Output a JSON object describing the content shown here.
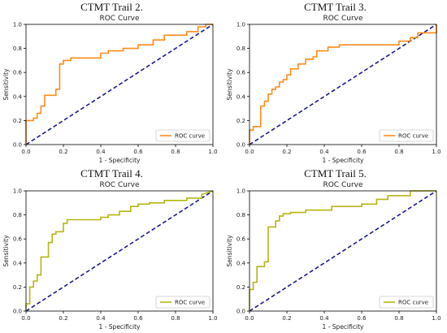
{
  "chart_data": [
    {
      "type": "line",
      "panel_title": "CTMT Trail 2.",
      "title": "ROC Curve",
      "xlabel": "1 - Specificity",
      "ylabel": "Sensitivity",
      "xlim": [
        0,
        1
      ],
      "ylim": [
        0,
        1
      ],
      "xticks": [
        "0.0",
        "0.2",
        "0.4",
        "0.6",
        "0.8",
        "1.0"
      ],
      "yticks": [
        "0.0",
        "0.2",
        "0.4",
        "0.6",
        "0.8",
        "1.0"
      ],
      "legend": "lower right",
      "diagonal_color": "#1a1a8c",
      "series": [
        {
          "name": "ROC curve",
          "color": "#ff8c1a",
          "x": [
            0,
            0,
            0.04,
            0.04,
            0.06,
            0.06,
            0.08,
            0.08,
            0.1,
            0.1,
            0.16,
            0.16,
            0.18,
            0.18,
            0.2,
            0.2,
            0.24,
            0.24,
            0.4,
            0.4,
            0.44,
            0.44,
            0.52,
            0.52,
            0.6,
            0.6,
            0.68,
            0.68,
            0.74,
            0.74,
            0.86,
            0.86,
            0.92,
            0.92,
            0.96,
            0.96,
            1.0
          ],
          "y": [
            0,
            0.2,
            0.2,
            0.22,
            0.22,
            0.26,
            0.26,
            0.32,
            0.32,
            0.41,
            0.41,
            0.46,
            0.46,
            0.67,
            0.67,
            0.7,
            0.7,
            0.72,
            0.72,
            0.76,
            0.76,
            0.78,
            0.78,
            0.8,
            0.8,
            0.83,
            0.83,
            0.87,
            0.87,
            0.91,
            0.91,
            0.94,
            0.94,
            0.98,
            0.98,
            1.0,
            1.0
          ]
        }
      ]
    },
    {
      "type": "line",
      "panel_title": "CTMT Trail 3.",
      "title": "ROC Curve",
      "xlabel": "1 - Specificity",
      "ylabel": "Sensitivity",
      "xlim": [
        0,
        1
      ],
      "ylim": [
        0,
        1
      ],
      "xticks": [
        "0.0",
        "0.2",
        "0.4",
        "0.6",
        "0.8",
        "1.0"
      ],
      "yticks": [
        "0.0",
        "0.2",
        "0.4",
        "0.6",
        "0.8",
        "1.0"
      ],
      "legend": "lower right",
      "diagonal_color": "#1a1a8c",
      "series": [
        {
          "name": "ROC curve",
          "color": "#ff8c1a",
          "x": [
            0,
            0,
            0.02,
            0.02,
            0.06,
            0.06,
            0.08,
            0.08,
            0.1,
            0.1,
            0.12,
            0.12,
            0.14,
            0.14,
            0.16,
            0.16,
            0.18,
            0.18,
            0.2,
            0.2,
            0.22,
            0.22,
            0.26,
            0.26,
            0.3,
            0.3,
            0.34,
            0.34,
            0.36,
            0.36,
            0.42,
            0.42,
            0.48,
            0.48,
            0.8,
            0.8,
            0.86,
            0.86,
            0.9,
            0.9,
            1.0,
            1.0
          ],
          "y": [
            0,
            0.12,
            0.12,
            0.15,
            0.15,
            0.32,
            0.32,
            0.36,
            0.36,
            0.42,
            0.42,
            0.46,
            0.46,
            0.48,
            0.48,
            0.52,
            0.52,
            0.54,
            0.54,
            0.58,
            0.58,
            0.63,
            0.63,
            0.67,
            0.67,
            0.71,
            0.71,
            0.73,
            0.73,
            0.78,
            0.78,
            0.81,
            0.81,
            0.83,
            0.83,
            0.86,
            0.86,
            0.89,
            0.89,
            0.93,
            0.93,
            1.0
          ]
        }
      ]
    },
    {
      "type": "line",
      "panel_title": "CTMT Trail 4.",
      "title": "ROC Curve",
      "xlabel": "1 - Specificity",
      "ylabel": "Sensitivity",
      "xlim": [
        0,
        1
      ],
      "ylim": [
        0,
        1
      ],
      "xticks": [
        "0.0",
        "0.2",
        "0.4",
        "0.6",
        "0.8",
        "1.0"
      ],
      "yticks": [
        "0.0",
        "0.2",
        "0.4",
        "0.6",
        "0.8",
        "1.0"
      ],
      "legend": "lower right",
      "diagonal_color": "#1a1a8c",
      "series": [
        {
          "name": "ROC curve",
          "color": "#b5b514",
          "x": [
            0,
            0,
            0.02,
            0.02,
            0.04,
            0.04,
            0.06,
            0.06,
            0.08,
            0.08,
            0.12,
            0.12,
            0.14,
            0.14,
            0.16,
            0.16,
            0.2,
            0.2,
            0.22,
            0.22,
            0.4,
            0.4,
            0.44,
            0.44,
            0.5,
            0.5,
            0.56,
            0.56,
            0.6,
            0.6,
            0.66,
            0.66,
            0.74,
            0.74,
            0.86,
            0.86,
            0.94,
            0.94,
            1.0
          ],
          "y": [
            0,
            0.06,
            0.06,
            0.2,
            0.2,
            0.25,
            0.25,
            0.3,
            0.3,
            0.45,
            0.45,
            0.57,
            0.57,
            0.64,
            0.64,
            0.66,
            0.66,
            0.73,
            0.73,
            0.76,
            0.76,
            0.78,
            0.78,
            0.8,
            0.8,
            0.83,
            0.83,
            0.87,
            0.87,
            0.89,
            0.89,
            0.9,
            0.9,
            0.92,
            0.92,
            0.94,
            0.94,
            0.97,
            1.0
          ]
        }
      ]
    },
    {
      "type": "line",
      "panel_title": "CTMT Trail 5.",
      "title": "ROC Curve",
      "xlabel": "1 - Specificity",
      "ylabel": "Sensitivity",
      "xlim": [
        0,
        1
      ],
      "ylim": [
        0,
        1
      ],
      "xticks": [
        "0.0",
        "0.2",
        "0.4",
        "0.6",
        "0.8",
        "1.0"
      ],
      "yticks": [
        "0.0",
        "0.2",
        "0.4",
        "0.6",
        "0.8",
        "1.0"
      ],
      "legend": "lower right",
      "diagonal_color": "#1a1a8c",
      "series": [
        {
          "name": "ROC curve",
          "color": "#b5b514",
          "x": [
            0,
            0,
            0.02,
            0.02,
            0.04,
            0.04,
            0.08,
            0.08,
            0.1,
            0.1,
            0.14,
            0.14,
            0.16,
            0.16,
            0.18,
            0.18,
            0.22,
            0.22,
            0.3,
            0.3,
            0.44,
            0.44,
            0.6,
            0.6,
            0.68,
            0.68,
            0.74,
            0.74,
            0.86,
            0.86,
            1.0
          ],
          "y": [
            0,
            0.18,
            0.18,
            0.24,
            0.24,
            0.37,
            0.37,
            0.41,
            0.41,
            0.7,
            0.7,
            0.75,
            0.75,
            0.79,
            0.79,
            0.81,
            0.81,
            0.82,
            0.82,
            0.84,
            0.84,
            0.87,
            0.87,
            0.89,
            0.89,
            0.93,
            0.93,
            0.96,
            0.96,
            1.0,
            1.0
          ]
        }
      ]
    }
  ]
}
